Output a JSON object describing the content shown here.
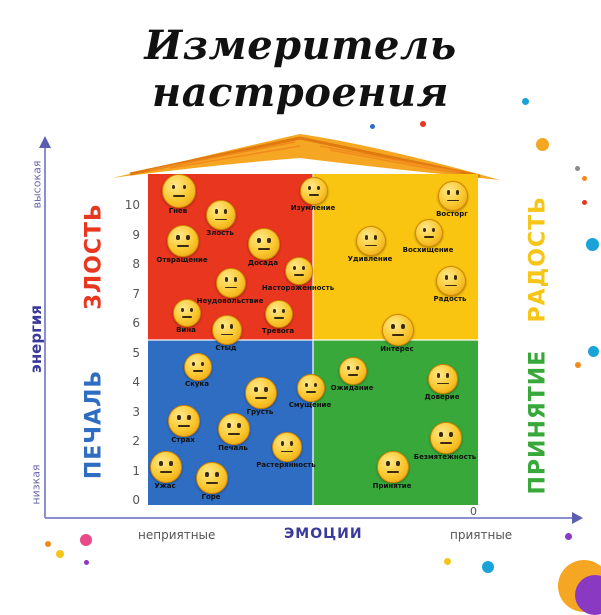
{
  "title": "Измеритель настроения",
  "y_axis": {
    "label": "энергия",
    "low": "низкая",
    "high": "высокая",
    "ticks": [
      "0",
      "1",
      "2",
      "3",
      "4",
      "5",
      "6",
      "7",
      "8",
      "9",
      "10"
    ]
  },
  "x_axis": {
    "label": "эмоции",
    "left": "неприятные",
    "right": "приятные",
    "zero": "0"
  },
  "quadrants": {
    "anger": {
      "label": "ЗЛОСТЬ",
      "color": "#e8361f"
    },
    "joy": {
      "label": "РАДОСТЬ",
      "color": "#f9c511"
    },
    "sadness": {
      "label": "ПЕЧАЛЬ",
      "color": "#2f6dc2"
    },
    "acceptance": {
      "label": "ПРИНЯТИЕ",
      "color": "#38a83a"
    }
  },
  "emotions": [
    {
      "name": "Гнев",
      "quadrant": "anger"
    },
    {
      "name": "Злость",
      "quadrant": "anger"
    },
    {
      "name": "Отвращение",
      "quadrant": "anger"
    },
    {
      "name": "Досада",
      "quadrant": "anger"
    },
    {
      "name": "Изумление",
      "quadrant": "anger"
    },
    {
      "name": "Неудовольствие",
      "quadrant": "anger"
    },
    {
      "name": "Настороженность",
      "quadrant": "anger"
    },
    {
      "name": "Вина",
      "quadrant": "anger"
    },
    {
      "name": "Тревога",
      "quadrant": "anger"
    },
    {
      "name": "Стыд",
      "quadrant": "anger"
    },
    {
      "name": "Восторг",
      "quadrant": "joy"
    },
    {
      "name": "Удивление",
      "quadrant": "joy"
    },
    {
      "name": "Восхищение",
      "quadrant": "joy"
    },
    {
      "name": "Радость",
      "quadrant": "joy"
    },
    {
      "name": "Интерес",
      "quadrant": "joy"
    },
    {
      "name": "Скука",
      "quadrant": "sadness"
    },
    {
      "name": "Грусть",
      "quadrant": "sadness"
    },
    {
      "name": "Смущение",
      "quadrant": "sadness"
    },
    {
      "name": "Страх",
      "quadrant": "sadness"
    },
    {
      "name": "Печаль",
      "quadrant": "sadness"
    },
    {
      "name": "Растерянность",
      "quadrant": "sadness"
    },
    {
      "name": "Ужас",
      "quadrant": "sadness"
    },
    {
      "name": "Горе",
      "quadrant": "sadness"
    },
    {
      "name": "Ожидание",
      "quadrant": "acceptance"
    },
    {
      "name": "Доверие",
      "quadrant": "acceptance"
    },
    {
      "name": "Безмятежность",
      "quadrant": "acceptance"
    },
    {
      "name": "Принятие",
      "quadrant": "acceptance"
    }
  ]
}
